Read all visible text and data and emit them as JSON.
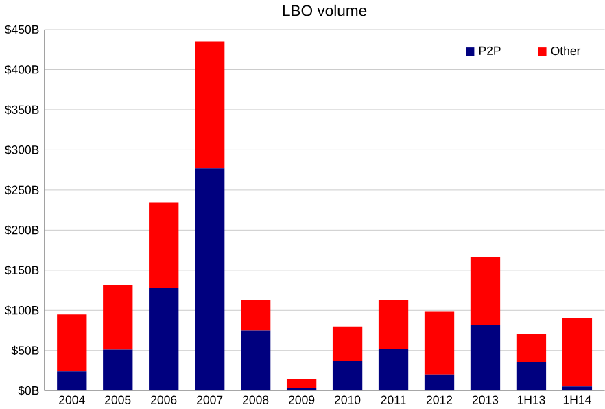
{
  "chart_data": {
    "type": "bar",
    "title": "LBO volume",
    "stacked": true,
    "grid": "y",
    "legend": "top right",
    "categories": [
      "2004",
      "2005",
      "2006",
      "2007",
      "2008",
      "2009",
      "2010",
      "2011",
      "2012",
      "2013",
      "1H13",
      "1H14"
    ],
    "series": [
      {
        "name": "P2P",
        "color": "#00007f",
        "values": [
          24,
          51,
          128,
          277,
          75,
          3,
          37,
          52,
          20,
          82,
          36,
          5
        ]
      },
      {
        "name": "Other",
        "color": "#ff0000",
        "values": [
          71,
          80,
          106,
          158,
          38,
          11,
          43,
          61,
          79,
          84,
          35,
          85
        ]
      }
    ],
    "ylim": [
      0,
      450
    ],
    "yticks": [
      {
        "value": 0,
        "label": "$0B"
      },
      {
        "value": 50,
        "label": "$50B"
      },
      {
        "value": 100,
        "label": "$100B"
      },
      {
        "value": 150,
        "label": "$150B"
      },
      {
        "value": 200,
        "label": "$200B"
      },
      {
        "value": 250,
        "label": "$250B"
      },
      {
        "value": 300,
        "label": "$300B"
      },
      {
        "value": 350,
        "label": "$350B"
      },
      {
        "value": 400,
        "label": "$400B"
      },
      {
        "value": 450,
        "label": "$450B"
      }
    ]
  }
}
